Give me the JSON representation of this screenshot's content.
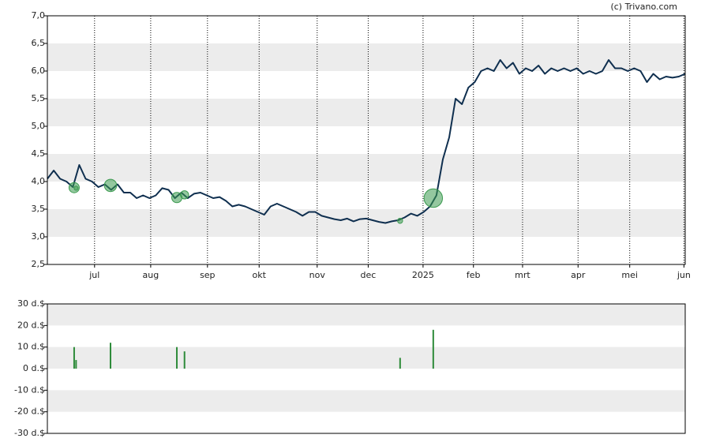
{
  "credit": "(c) Trivano.com",
  "chart_data": [
    {
      "type": "line",
      "color": "#0f2f4f",
      "values": [
        4.05,
        4.2,
        4.05,
        4.0,
        3.9,
        4.3,
        4.05,
        4.0,
        3.9,
        3.95,
        3.85,
        3.95,
        3.8,
        3.8,
        3.7,
        3.75,
        3.7,
        3.75,
        3.88,
        3.85,
        3.7,
        3.8,
        3.7,
        3.78,
        3.8,
        3.75,
        3.7,
        3.72,
        3.65,
        3.55,
        3.58,
        3.55,
        3.5,
        3.45,
        3.4,
        3.55,
        3.6,
        3.55,
        3.5,
        3.45,
        3.38,
        3.45,
        3.45,
        3.38,
        3.35,
        3.32,
        3.3,
        3.33,
        3.28,
        3.32,
        3.33,
        3.3,
        3.27,
        3.25,
        3.28,
        3.3,
        3.35,
        3.42,
        3.38,
        3.45,
        3.55,
        3.75,
        4.4,
        4.8,
        5.5,
        5.4,
        5.7,
        5.8,
        6.0,
        6.05,
        6.0,
        6.2,
        6.05,
        6.15,
        5.95,
        6.05,
        6.0,
        6.1,
        5.95,
        6.05,
        6.0,
        6.05,
        6.0,
        6.05,
        5.95,
        6.0,
        5.95,
        6.0,
        6.2,
        6.05,
        6.05,
        6.0,
        6.05,
        6.0,
        5.8,
        5.95,
        5.85,
        5.9,
        5.88,
        5.9,
        5.95
      ],
      "markers": {
        "color": "#3c9a50",
        "x": [
          4.2,
          4.5,
          9.9,
          20.3,
          21.5,
          55.3,
          60.5
        ],
        "y": [
          3.89,
          3.88,
          3.93,
          3.71,
          3.76,
          3.29,
          3.7
        ]
      },
      "xlim": [
        0,
        100
      ],
      "xticks": [
        {
          "value": 7.4,
          "label": "jul"
        },
        {
          "value": 16.2,
          "label": "aug"
        },
        {
          "value": 25.1,
          "label": "sep"
        },
        {
          "value": 33.2,
          "label": "okt"
        },
        {
          "value": 42.3,
          "label": "nov"
        },
        {
          "value": 50.3,
          "label": "dec"
        },
        {
          "value": 58.9,
          "label": "2025"
        },
        {
          "value": 66.8,
          "label": "feb"
        },
        {
          "value": 74.5,
          "label": "mrt"
        },
        {
          "value": 83.2,
          "label": "apr"
        },
        {
          "value": 91.3,
          "label": "mei"
        },
        {
          "value": 99.8,
          "label": "jun"
        }
      ],
      "ylim": [
        2.5,
        7
      ],
      "yticks": [
        {
          "value": 2.5,
          "label": "2,5"
        },
        {
          "value": 3,
          "label": "3,0"
        },
        {
          "value": 3.5,
          "label": "3,5"
        },
        {
          "value": 4,
          "label": "4,0"
        },
        {
          "value": 4.5,
          "label": "4,5"
        },
        {
          "value": 5,
          "label": "5,0"
        },
        {
          "value": 5.5,
          "label": "5,5"
        },
        {
          "value": 6,
          "label": "6,0"
        },
        {
          "value": 6.5,
          "label": "6,5"
        },
        {
          "value": 7,
          "label": "7,0"
        }
      ],
      "grid": true
    },
    {
      "type": "bar",
      "color": "#2e8b3a",
      "x": [
        4.2,
        4.5,
        9.9,
        20.3,
        21.5,
        55.3,
        60.5
      ],
      "values": [
        10,
        4,
        12,
        10,
        8,
        5,
        18
      ],
      "xlim": [
        0,
        100
      ],
      "ylim": [
        -30,
        30
      ],
      "yticks": [
        {
          "value": -30,
          "label": "-30 d.$"
        },
        {
          "value": -20,
          "label": "-20 d.$"
        },
        {
          "value": -10,
          "label": "-10 d.$"
        },
        {
          "value": 0,
          "label": "0 d.$"
        },
        {
          "value": 10,
          "label": "10 d.$"
        },
        {
          "value": 20,
          "label": "20 d.$"
        },
        {
          "value": 30,
          "label": "30 d.$"
        }
      ]
    }
  ]
}
